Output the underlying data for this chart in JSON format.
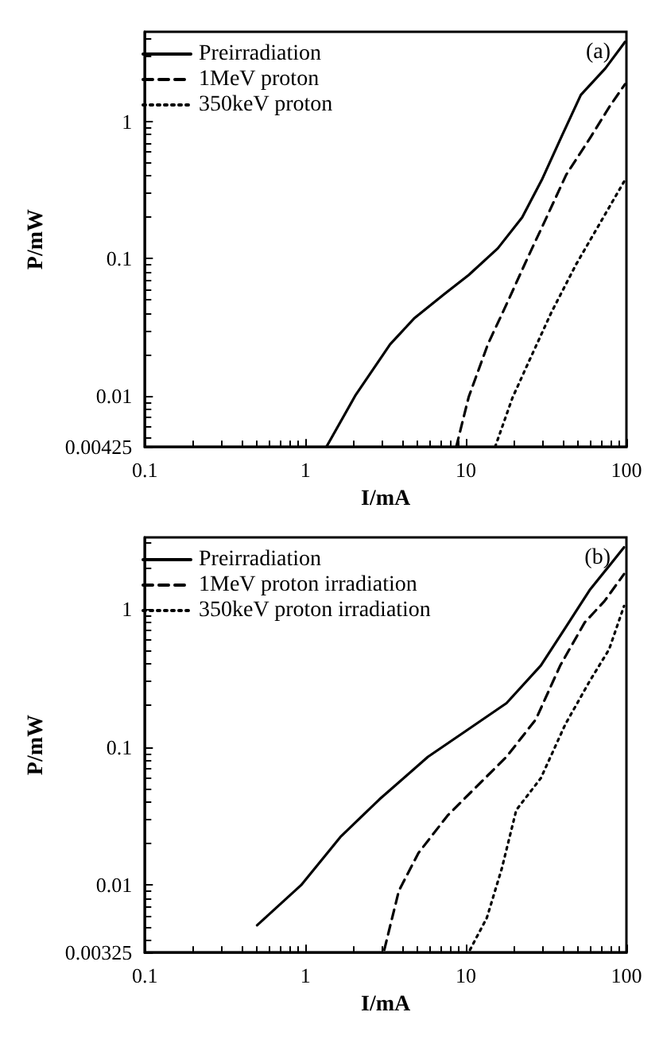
{
  "chart_data": [
    {
      "type": "line",
      "xlabel": "I/mA",
      "ylabel": "P/mW",
      "log": "xy",
      "xlim": [
        0.1,
        100
      ],
      "xticks": [
        0.1,
        1,
        10,
        100
      ],
      "ylim": [
        0.00425,
        4.5
      ],
      "yticks": [
        0.00425,
        0.01,
        0.1,
        1
      ],
      "grid": false,
      "legend": "top left",
      "annotations": [
        "(a)"
      ],
      "series": [
        {
          "name": "Preirradiation",
          "color": "#000000",
          "line_style": "solid",
          "x": [
            1.35,
            2.06,
            3.37,
            4.79,
            7.3,
            10.4,
            15.8,
            22.4,
            29.7,
            39.3,
            52,
            74,
            98
          ],
          "values": [
            0.00425,
            0.0102,
            0.0238,
            0.037,
            0.055,
            0.076,
            0.119,
            0.2,
            0.375,
            0.77,
            1.56,
            2.44,
            3.8
          ]
        },
        {
          "name": "1MeV proton",
          "color": "#000000",
          "line_style": "dashed",
          "x": [
            8.7,
            10.4,
            13.7,
            18.2,
            24,
            31.8,
            42.2,
            59.9,
            79.4,
            98
          ],
          "values": [
            0.00425,
            0.0098,
            0.0238,
            0.0485,
            0.099,
            0.2,
            0.41,
            0.77,
            1.31,
            1.87
          ]
        },
        {
          "name": "350keV proton",
          "color": "#000000",
          "line_style": "dotted",
          "x": [
            15.2,
            19.5,
            24,
            34.2,
            48.5,
            68.9,
            98
          ],
          "values": [
            0.00425,
            0.0097,
            0.0166,
            0.041,
            0.0906,
            0.184,
            0.375
          ]
        }
      ]
    },
    {
      "type": "line",
      "xlabel": "I/mA",
      "ylabel": "P/mW",
      "log": "xy",
      "xlim": [
        0.1,
        100
      ],
      "xticks": [
        0.1,
        1,
        10,
        100
      ],
      "ylim": [
        0.00325,
        3.3
      ],
      "yticks": [
        0.00325,
        0.01,
        0.1,
        1
      ],
      "grid": false,
      "legend": "top left",
      "annotations": [
        "(b)"
      ],
      "series": [
        {
          "name": "Preirradiation",
          "color": "#000000",
          "line_style": "solid",
          "x": [
            0.5,
            0.94,
            1.65,
            2.89,
            5.8,
            10.2,
            17.9,
            29.3,
            41.6,
            59,
            78,
            96.6
          ],
          "values": [
            0.00512,
            0.01,
            0.0223,
            0.0418,
            0.085,
            0.133,
            0.208,
            0.39,
            0.73,
            1.37,
            2.05,
            2.8
          ]
        },
        {
          "name": "1MeV proton irradiation",
          "color": "#000000",
          "line_style": "dashed",
          "x": [
            3.1,
            3.82,
            5.06,
            7.7,
            11.7,
            17.9,
            27.3,
            38.7,
            55,
            73,
            96.6
          ],
          "values": [
            0.0034,
            0.0091,
            0.0171,
            0.032,
            0.052,
            0.085,
            0.159,
            0.39,
            0.8,
            1.14,
            1.79
          ]
        },
        {
          "name": "350keV proton irradiation",
          "color": "#000000",
          "line_style": "dotted",
          "x": [
            10.6,
            13.5,
            16.7,
            20.6,
            29.3,
            41.6,
            59,
            78,
            96.6
          ],
          "values": [
            0.0034,
            0.0058,
            0.0131,
            0.035,
            0.0596,
            0.146,
            0.3,
            0.51,
            1.05
          ]
        }
      ]
    }
  ]
}
